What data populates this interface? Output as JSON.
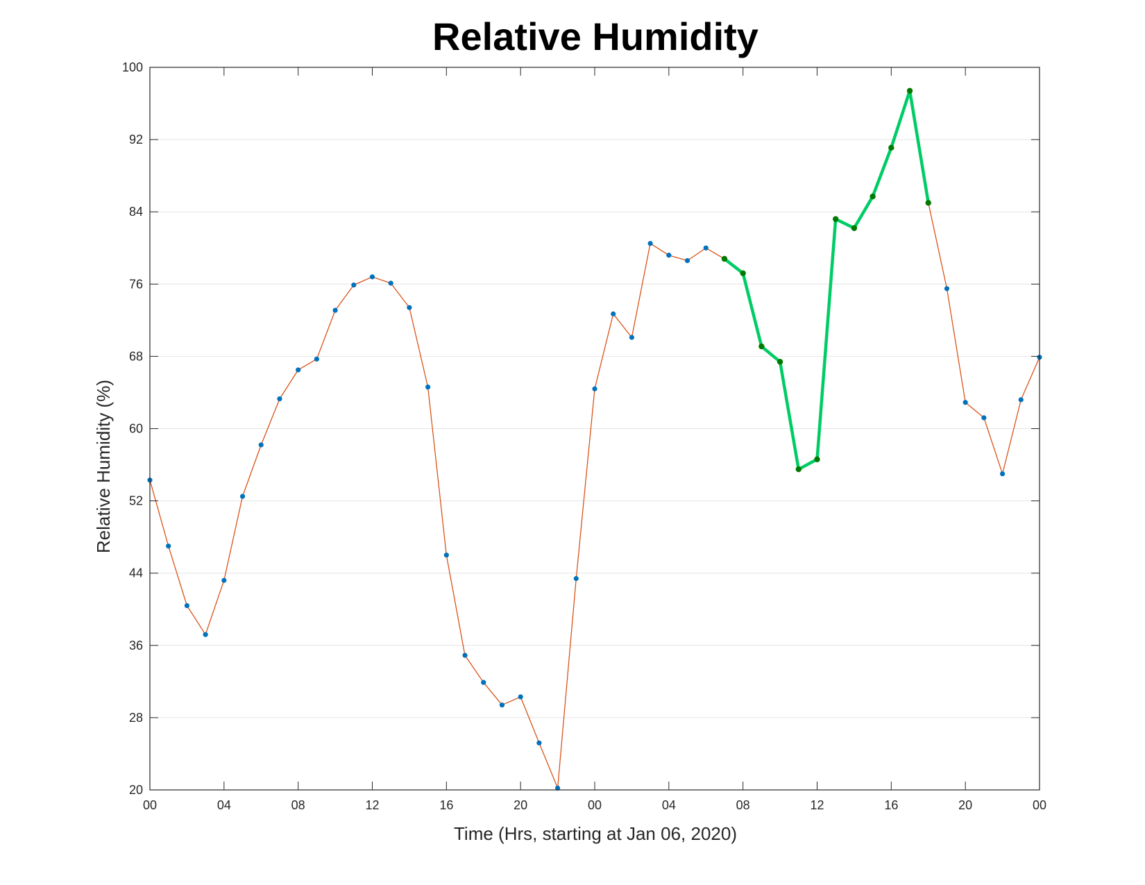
{
  "chart_data": {
    "type": "line",
    "title": "Relative Humidity",
    "xlabel": "Time (Hrs, starting at Jan 06, 2020)",
    "ylabel": "Relative Humidity (%)",
    "ylim": [
      20,
      100
    ],
    "xlim": [
      "2020-01-06 00:00",
      "2020-01-08 00:00"
    ],
    "grid": "horizontal",
    "y_ticks": [
      20,
      28,
      36,
      44,
      52,
      60,
      68,
      76,
      84,
      92,
      100
    ],
    "x_tick_labels": [
      "00",
      "04",
      "08",
      "12",
      "16",
      "20",
      "00",
      "04",
      "08",
      "12",
      "16",
      "20",
      "00"
    ],
    "x_tick_times": [
      "2020-01-06 00:00",
      "2020-01-06 04:00",
      "2020-01-06 08:00",
      "2020-01-06 12:00",
      "2020-01-06 16:00",
      "2020-01-06 20:00",
      "2020-01-07 00:00",
      "2020-01-07 04:00",
      "2020-01-07 08:00",
      "2020-01-07 12:00",
      "2020-01-07 16:00",
      "2020-01-07 20:00",
      "2020-01-08 00:00"
    ],
    "x": [
      "2020-01-06 00:00",
      "2020-01-06 01:00",
      "2020-01-06 02:00",
      "2020-01-06 03:00",
      "2020-01-06 04:00",
      "2020-01-06 05:00",
      "2020-01-06 06:00",
      "2020-01-06 07:00",
      "2020-01-06 08:00",
      "2020-01-06 09:00",
      "2020-01-06 10:00",
      "2020-01-06 11:00",
      "2020-01-06 12:00",
      "2020-01-06 13:00",
      "2020-01-06 14:00",
      "2020-01-06 15:00",
      "2020-01-06 16:00",
      "2020-01-06 17:00",
      "2020-01-06 18:00",
      "2020-01-06 19:00",
      "2020-01-06 20:00",
      "2020-01-06 21:00",
      "2020-01-06 22:00",
      "2020-01-06 23:00",
      "2020-01-07 00:00",
      "2020-01-07 01:00",
      "2020-01-07 02:00",
      "2020-01-07 03:00",
      "2020-01-07 04:00",
      "2020-01-07 05:00",
      "2020-01-07 06:00",
      "2020-01-07 07:00",
      "2020-01-07 08:00",
      "2020-01-07 09:00",
      "2020-01-07 10:00",
      "2020-01-07 11:00",
      "2020-01-07 12:00",
      "2020-01-07 13:00",
      "2020-01-07 14:00",
      "2020-01-07 15:00",
      "2020-01-07 16:00",
      "2020-01-07 17:00",
      "2020-01-07 18:00",
      "2020-01-07 19:00",
      "2020-01-07 20:00",
      "2020-01-07 21:00",
      "2020-01-07 22:00",
      "2020-01-07 23:00",
      "2020-01-08 00:00"
    ],
    "series": [
      {
        "values": [
          54.3,
          47.0,
          40.4,
          37.2,
          43.2,
          52.5,
          58.2,
          63.3,
          66.5,
          67.7,
          73.1,
          75.9,
          76.8,
          76.1,
          73.4,
          64.6,
          46.0,
          34.9,
          31.9,
          29.4,
          30.3,
          25.2,
          20.2,
          43.4,
          64.4,
          72.7,
          70.1,
          80.5,
          79.2,
          78.6,
          80.0,
          78.8,
          77.2,
          69.1,
          67.4,
          55.5,
          56.6,
          83.2,
          82.2,
          85.7,
          91.1,
          97.4,
          85.0,
          75.5,
          62.9,
          61.2,
          55.0,
          63.2,
          67.9
        ],
        "color": "#D95319",
        "marker_color": "#0072BD"
      },
      {
        "x": [
          "2020-01-07 07:00",
          "2020-01-07 08:00",
          "2020-01-07 09:00",
          "2020-01-07 10:00",
          "2020-01-07 11:00",
          "2020-01-07 12:00",
          "2020-01-07 13:00",
          "2020-01-07 14:00",
          "2020-01-07 15:00",
          "2020-01-07 16:00",
          "2020-01-07 17:00",
          "2020-01-07 18:00"
        ],
        "values": [
          78.8,
          77.2,
          69.1,
          67.4,
          55.5,
          56.6,
          83.2,
          82.2,
          85.7,
          91.1,
          97.4,
          85.0
        ],
        "color": "#00CC66",
        "marker_color": "#007A00"
      }
    ]
  }
}
